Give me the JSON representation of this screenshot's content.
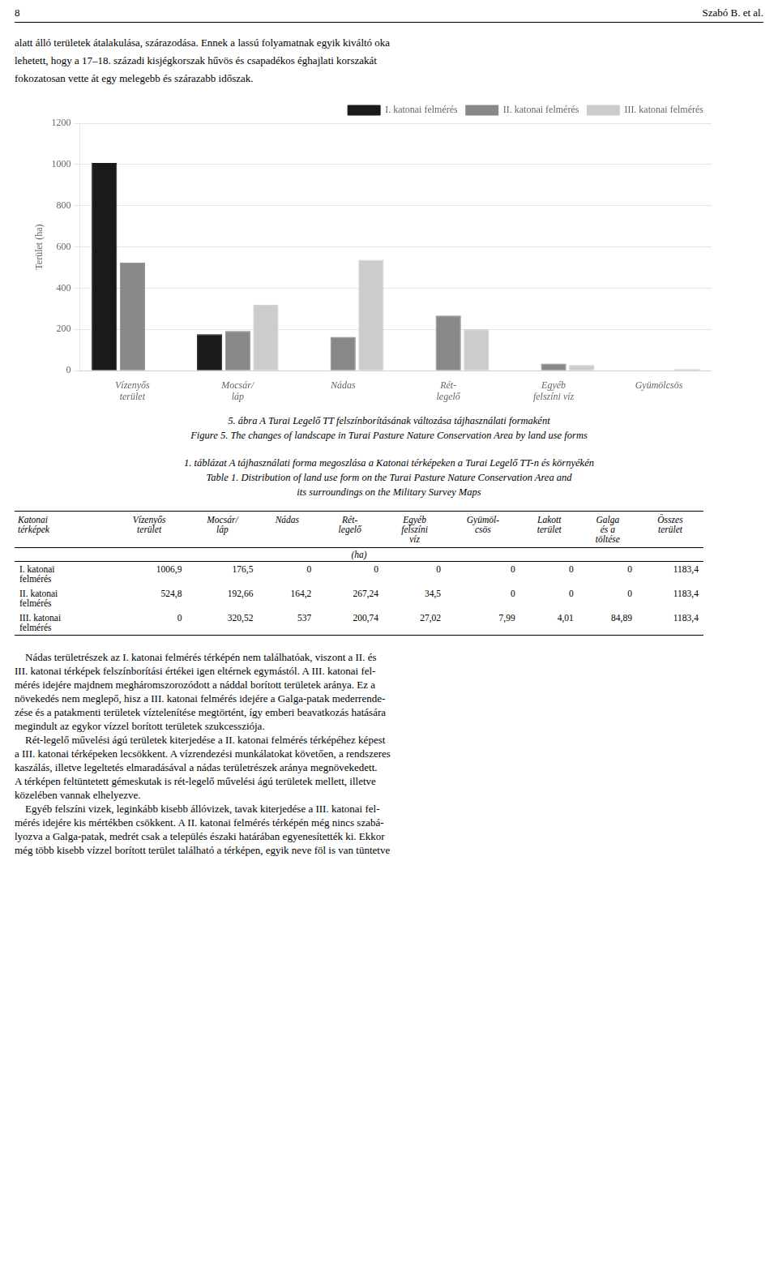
{
  "chart_data": {
    "type": "bar",
    "categories": [
      "Vízenyős\nterület",
      "Mocsár/\nláp",
      "Nádas",
      "Rét-\nlegelő",
      "Egyéb\nfelszíni víz",
      "Gyümölcsös"
    ],
    "series": [
      {
        "name": "I. katonai felmérés",
        "values": [
          1006.9,
          176.5,
          0,
          0,
          0,
          0
        ],
        "color": "#1a1a1a"
      },
      {
        "name": "II. katonai felmérés",
        "values": [
          524.8,
          192.66,
          164.2,
          267.24,
          34.5,
          0
        ],
        "color": "#888888"
      },
      {
        "name": "III. katonai felmérés",
        "values": [
          0,
          320.52,
          537.0,
          200.74,
          27.02,
          7.99
        ],
        "color": "#cccccc"
      }
    ],
    "ylabel": "Terület (ha)",
    "ylim": [
      0,
      1200
    ],
    "yticks": [
      0,
      200,
      400,
      600,
      800,
      1000,
      1200
    ],
    "grid": true,
    "legend": "upper right",
    "annotations": {
      "header": [
        "8",
        "Szabó B. et al."
      ],
      "text_above": [
        "alatt álló területek átalakulása, szárazodása. Ennek a lassú folyamatnak egyik kiváltó oka",
        "lehetett, hogy a 17–18. századi kisjégkorszak hűvös és csapadékos éghajlati korszakát",
        "fokozatosan vette át egy melegebb és szárazabb időszak."
      ],
      "caption": [
        "5. ábra A Turai Legelő TT felszínborításának változása tájhasználati formaként",
        "Figure 5. The changes of landscape in Turai Pasture Nature Conservation Area by land use forms"
      ],
      "table_caption": [
        "1. táblázat A tájhasználati forma megoszlása a Katonai térképeken a Turai Legelő TT-n és környékén",
        "Table 1. Distribution of land use form on the Turai Pasture Nature Conservation Area and",
        "its surroundings on the Military Survey Maps"
      ],
      "table": {
        "headers": [
          "Katonai\ntérképek",
          "Vízenyős\nterület",
          "Mocsár/\nláp",
          "Nádas",
          "Rét-\nlegelő",
          "Egyéb\nfelszíni\nvíz",
          "Gyümöl-\ncsös",
          "Lakott\nterület",
          "Galga\nés a\ntöltése",
          "Összes\nterület"
        ],
        "subheader": "(ha)",
        "rows": [
          [
            "I. katonai\nfelmérés",
            "1006,9",
            "176,5",
            "0",
            "0",
            "0",
            "0",
            "0",
            "0",
            "1183,4"
          ],
          [
            "II. katonai\nfelmérés",
            "524,8",
            "192,66",
            "164,2",
            "267,24",
            "34,5",
            "0",
            "0",
            "0",
            "1183,4"
          ],
          [
            "III. katonai\nfelmérés",
            "0",
            "320,52",
            "537",
            "200,74",
            "27,02",
            "7,99",
            "4,01",
            "84,89",
            "1183,4"
          ]
        ]
      },
      "text_below": [
        "    Nádas területrészek az I. katonai felmérés térképén nem találhatóak, viszont a II. és",
        "III. katonai térképek felszínborítási értékei igen eltérnek egymástól. A III. katonai fel-",
        "mérés idejére majdnem megháromszorozódott a náddal borított területek aránya. Ez a",
        "növekedés nem meglepő, hisz a III. katonai felmérés idejére a Galga-patak mederrende-",
        "zése és a patakmenti területek víztelenítése megtörtént, így emberi beavatkozás hatására",
        "megindult az egykor vízzel borított területek szukcessziója.",
        "    Rét-legelő művelési ágú területek kiterjedése a II. katonai felmérés térképéhez képest",
        "a III. katonai térképeken lecsökkent. A vízrendezési munkálatokat követően, a rendszeres",
        "kaszálás, illetve legeltetés elmaradásával a nádas területrészek aránya megnövekedett.",
        "A térképen feltüntetett gémeskutak is rét-legelő művelési ágú területek mellett, illetve",
        "közelében vannak elhelyezve.",
        "    Egyéb felszíni vizek, leginkább kisebb állóvizek, tavak kiterjedése a III. katonai fel-",
        "mérés idejére kis mértékben csökkent. A II. katonai felmérés térképén még nincs szabá-",
        "lyozva a Galga-patak, medrét csak a település északi határában egyenesítették ki. Ekkor",
        "még több kisebb vízzel borított terület található a térképen, egyik neve föl is van tüntetve"
      ]
    }
  }
}
